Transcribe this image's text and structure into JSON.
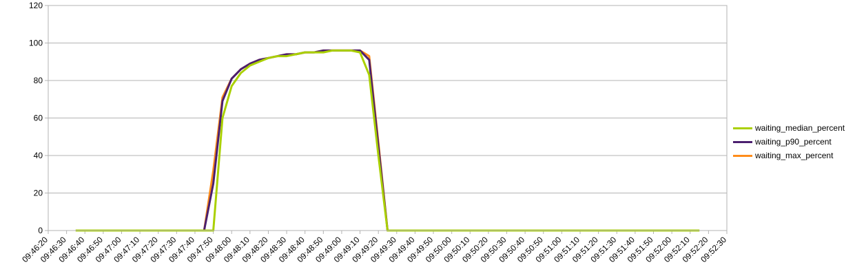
{
  "chart_data": {
    "type": "line",
    "title": "",
    "xlabel": "",
    "ylabel": "",
    "ylim": [
      0,
      120
    ],
    "yticks": [
      0,
      20,
      40,
      60,
      80,
      100,
      120
    ],
    "xlim": [
      "09:46:20",
      "09:52:30"
    ],
    "xtick_labels": [
      "09:46:20",
      "09:46:30",
      "09:46:40",
      "09:46:50",
      "09:47:00",
      "09:47:10",
      "09:47:20",
      "09:47:30",
      "09:47:40",
      "09:47:50",
      "09:48:00",
      "09:48:10",
      "09:48:20",
      "09:48:30",
      "09:48:40",
      "09:48:50",
      "09:49:00",
      "09:49:10",
      "09:49:20",
      "09:49:30",
      "09:49:40",
      "09:49:50",
      "09:50:00",
      "09:50:10",
      "09:50:20",
      "09:50:30",
      "09:50:40",
      "09:50:50",
      "09:51:00",
      "09:51:10",
      "09:51:20",
      "09:51:30",
      "09:51:40",
      "09:51:50",
      "09:52:00",
      "09:52:10",
      "09:52:20",
      "09:52:30"
    ],
    "grid": "horizontal",
    "legend_position": "right",
    "x": [
      "09:46:35",
      "09:46:40",
      "09:46:45",
      "09:46:50",
      "09:46:55",
      "09:47:00",
      "09:47:05",
      "09:47:10",
      "09:47:15",
      "09:47:20",
      "09:47:25",
      "09:47:30",
      "09:47:35",
      "09:47:40",
      "09:47:45",
      "09:47:50",
      "09:47:55",
      "09:48:00",
      "09:48:05",
      "09:48:10",
      "09:48:15",
      "09:48:20",
      "09:48:25",
      "09:48:30",
      "09:48:35",
      "09:48:40",
      "09:48:45",
      "09:48:50",
      "09:48:55",
      "09:49:00",
      "09:49:05",
      "09:49:10",
      "09:49:15",
      "09:49:20",
      "09:49:25",
      "09:49:30",
      "09:49:35",
      "09:49:40",
      "09:49:45",
      "09:49:50",
      "09:49:55",
      "09:50:00",
      "09:50:05",
      "09:50:10",
      "09:50:15",
      "09:50:20",
      "09:50:25",
      "09:50:30",
      "09:50:35",
      "09:50:40",
      "09:50:45",
      "09:50:50",
      "09:50:55",
      "09:51:00",
      "09:51:05",
      "09:51:10",
      "09:51:15",
      "09:51:20",
      "09:51:25",
      "09:51:30",
      "09:51:35",
      "09:51:40",
      "09:51:45",
      "09:51:50",
      "09:51:55",
      "09:52:00",
      "09:52:05",
      "09:52:10",
      "09:52:15"
    ],
    "series": [
      {
        "name": "waiting_median_percent",
        "color": "#aad000",
        "values": [
          0,
          0,
          0,
          0,
          0,
          0,
          0,
          0,
          0,
          0,
          0,
          0,
          0,
          0,
          0,
          0,
          60,
          77,
          84,
          88,
          90,
          92,
          93,
          93,
          94,
          95,
          95,
          95,
          96,
          96,
          96,
          95,
          83,
          40,
          0,
          0,
          0,
          0,
          0,
          0,
          0,
          0,
          0,
          0,
          0,
          0,
          0,
          0,
          0,
          0,
          0,
          0,
          0,
          0,
          0,
          0,
          0,
          0,
          0,
          0,
          0,
          0,
          0,
          0,
          0,
          0,
          0,
          0,
          0
        ]
      },
      {
        "name": "waiting_p90_percent",
        "color": "#4b1f6f",
        "values": [
          0,
          0,
          0,
          0,
          0,
          0,
          0,
          0,
          0,
          0,
          0,
          0,
          0,
          0,
          0,
          25,
          69,
          81,
          86,
          89,
          91,
          92,
          93,
          94,
          94,
          95,
          95,
          96,
          96,
          96,
          96,
          96,
          91,
          45,
          0,
          0,
          0,
          0,
          0,
          0,
          0,
          0,
          0,
          0,
          0,
          0,
          0,
          0,
          0,
          0,
          0,
          0,
          0,
          0,
          0,
          0,
          0,
          0,
          0,
          0,
          0,
          0,
          0,
          0,
          0,
          0,
          0,
          0,
          0
        ]
      },
      {
        "name": "waiting_max_percent",
        "color": "#ff8c1a",
        "values": [
          0,
          0,
          0,
          0,
          0,
          0,
          0,
          0,
          0,
          0,
          0,
          0,
          0,
          0,
          0,
          32,
          71,
          81,
          86,
          89,
          91,
          92,
          93,
          94,
          94,
          95,
          95,
          96,
          96,
          96,
          96,
          96,
          93,
          47,
          0,
          0,
          0,
          0,
          0,
          0,
          0,
          0,
          0,
          0,
          0,
          0,
          0,
          0,
          0,
          0,
          0,
          0,
          0,
          0,
          0,
          0,
          0,
          0,
          0,
          0,
          0,
          0,
          0,
          0,
          0,
          0,
          0,
          0,
          0
        ]
      }
    ]
  }
}
